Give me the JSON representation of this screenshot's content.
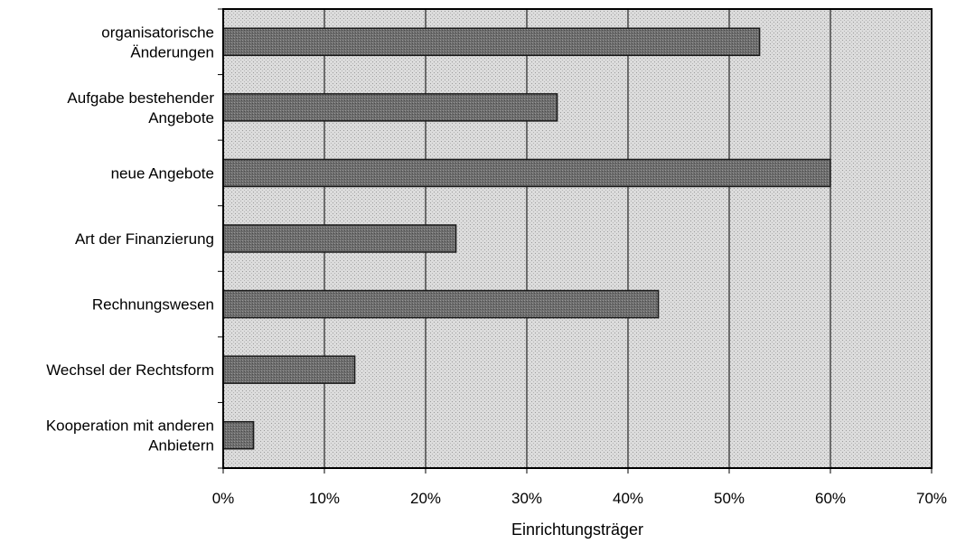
{
  "chart_data": {
    "type": "bar",
    "orientation": "horizontal",
    "categories": [
      [
        "organisatorische",
        "Änderungen"
      ],
      [
        "Aufgabe bestehender",
        "Angebote"
      ],
      [
        "neue Angebote"
      ],
      [
        "Art der Finanzierung"
      ],
      [
        "Rechnungswesen"
      ],
      [
        "Wechsel der Rechtsform"
      ],
      [
        "Kooperation mit anderen",
        "Anbietern"
      ]
    ],
    "values": [
      53,
      33,
      60,
      23,
      43,
      13,
      3
    ],
    "xlabel": "Einrichtungsträger",
    "ylabel": "",
    "xlim": [
      0,
      70
    ],
    "xticks": [
      0,
      10,
      20,
      30,
      40,
      50,
      60,
      70
    ],
    "xtick_labels": [
      "0%",
      "10%",
      "20%",
      "30%",
      "40%",
      "50%",
      "60%",
      "70%"
    ],
    "grid": "vertical",
    "colors": {
      "bar": "#7a7a7a",
      "bar_border": "#1a1a1a",
      "plot_background": "#d9d9d9",
      "gridline": "#000000"
    }
  }
}
